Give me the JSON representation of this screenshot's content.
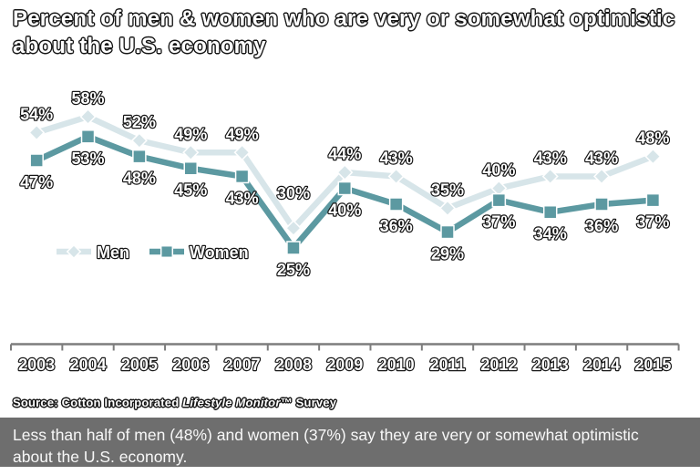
{
  "title": {
    "line1": "Percent of men & women who are very or somewhat optimistic",
    "line2": "about the U.S. economy"
  },
  "chart_data": {
    "type": "line",
    "title": "Percent of men & women who are very or somewhat optimistic about the U.S. economy",
    "categories": [
      "2003",
      "2004",
      "2005",
      "2006",
      "2007",
      "2008",
      "2009",
      "2010",
      "2011",
      "2012",
      "2013",
      "2014",
      "2015"
    ],
    "series": [
      {
        "name": "Men",
        "marker": "diamond",
        "color": "#d7e5e9",
        "values": [
          54,
          58,
          52,
          49,
          49,
          30,
          44,
          43,
          35,
          40,
          43,
          43,
          48
        ]
      },
      {
        "name": "Women",
        "marker": "square",
        "color": "#5c99a1",
        "values": [
          47,
          53,
          48,
          45,
          43,
          25,
          40,
          36,
          29,
          37,
          34,
          36,
          37
        ]
      }
    ],
    "value_suffix": "%",
    "xlabel": "",
    "ylabel": "",
    "ylim": [
      20,
      62
    ],
    "grid": false,
    "legend_position": "inside-left-middle",
    "data_labels": true
  },
  "source": {
    "prefix": "Source: Cotton Incorporated ",
    "italic": "Lifestyle Monitor",
    "suffix": "™ Survey"
  },
  "caption": {
    "line1": "Less than half of men (48%) and women (37%) say they are very or somewhat optimistic",
    "line2": "about the U.S. economy."
  },
  "colors": {
    "caption_bg": "#6e6e6e",
    "caption_text": "#f8f8f8",
    "axis": "#7d7d7d",
    "text_fill": "#ffffff",
    "text_outline": "#161616"
  }
}
